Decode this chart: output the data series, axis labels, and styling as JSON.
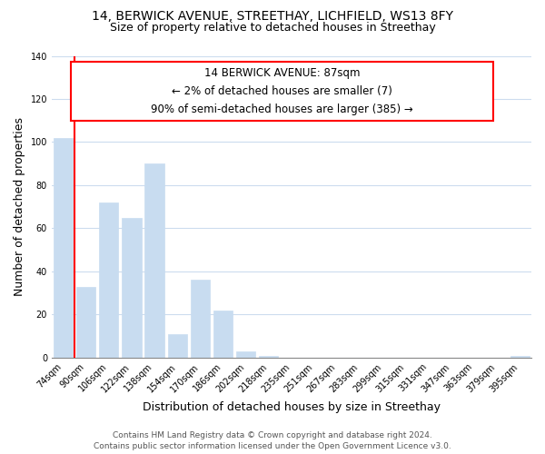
{
  "title": "14, BERWICK AVENUE, STREETHAY, LICHFIELD, WS13 8FY",
  "subtitle": "Size of property relative to detached houses in Streethay",
  "xlabel": "Distribution of detached houses by size in Streethay",
  "ylabel": "Number of detached properties",
  "bar_labels": [
    "74sqm",
    "90sqm",
    "106sqm",
    "122sqm",
    "138sqm",
    "154sqm",
    "170sqm",
    "186sqm",
    "202sqm",
    "218sqm",
    "235sqm",
    "251sqm",
    "267sqm",
    "283sqm",
    "299sqm",
    "315sqm",
    "331sqm",
    "347sqm",
    "363sqm",
    "379sqm",
    "395sqm"
  ],
  "bar_values": [
    102,
    33,
    72,
    65,
    90,
    11,
    36,
    22,
    3,
    1,
    0,
    0,
    0,
    0,
    0,
    0,
    0,
    0,
    0,
    0,
    1
  ],
  "bar_color": "#c8dcf0",
  "annotation_line1": "14 BERWICK AVENUE: 87sqm",
  "annotation_line2": "← 2% of detached houses are smaller (7)",
  "annotation_line3": "90% of semi-detached houses are larger (385) →",
  "ylim": [
    0,
    140
  ],
  "yticks": [
    0,
    20,
    40,
    60,
    80,
    100,
    120,
    140
  ],
  "footer_line1": "Contains HM Land Registry data © Crown copyright and database right 2024.",
  "footer_line2": "Contains public sector information licensed under the Open Government Licence v3.0.",
  "background_color": "#ffffff",
  "grid_color": "#ccdcee",
  "title_fontsize": 10,
  "subtitle_fontsize": 9,
  "axis_label_fontsize": 9,
  "tick_fontsize": 7,
  "footer_fontsize": 6.5,
  "annotation_fontsize": 8.5
}
